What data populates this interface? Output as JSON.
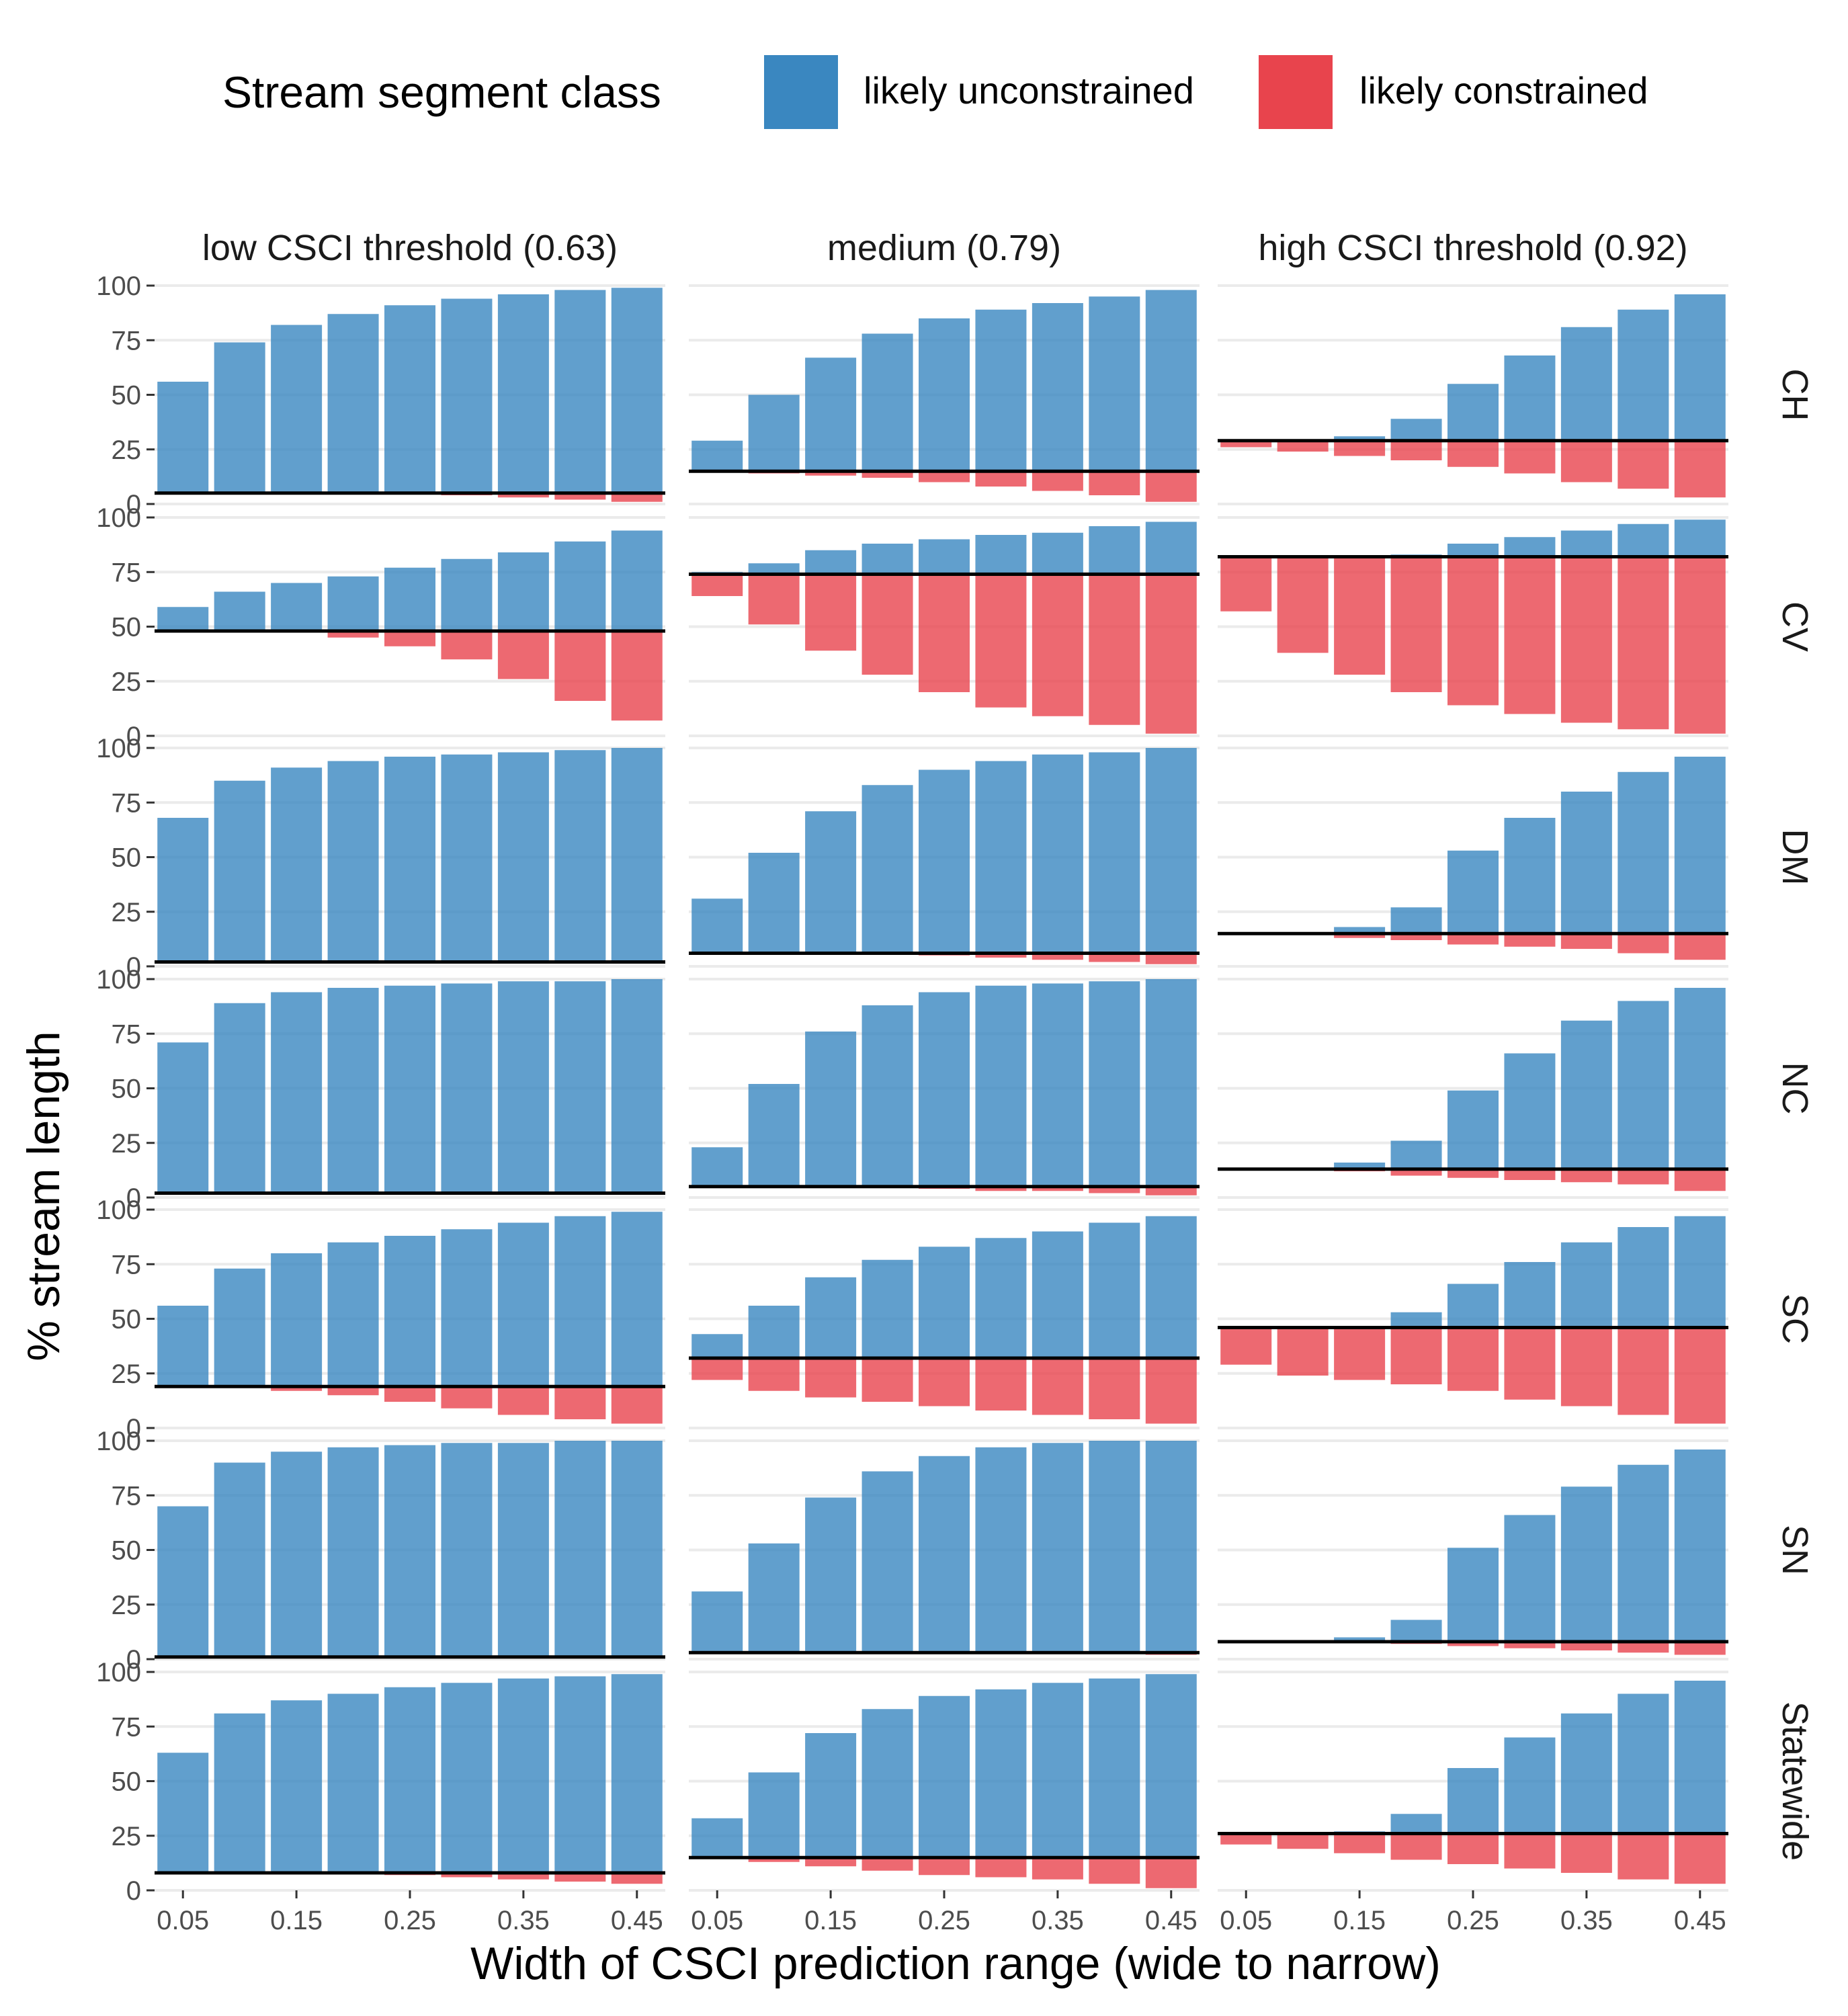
{
  "legend": {
    "title": "Stream segment class",
    "items": [
      {
        "label": "likely unconstrained",
        "color": "#3A87C0"
      },
      {
        "label": "likely constrained",
        "color": "#E8444D"
      }
    ]
  },
  "chart_data": {
    "type": "bar",
    "x_axis_label": "Width of CSCI prediction range (wide to narrow)",
    "y_axis_label": "% stream length",
    "x": [
      0.05,
      0.1,
      0.15,
      0.2,
      0.25,
      0.3,
      0.35,
      0.4,
      0.45
    ],
    "x_tick_labels": [
      "0.05",
      "0.15",
      "0.25",
      "0.35",
      "0.45"
    ],
    "x_tick_values": [
      0.05,
      0.15,
      0.25,
      0.35,
      0.45
    ],
    "ylim": [
      0,
      100
    ],
    "y_ticks": [
      0,
      25,
      50,
      75,
      100
    ],
    "columns": [
      "low CSCI threshold (0.63)",
      "medium (0.79)",
      "high CSCI threshold (0.92)"
    ],
    "rows": [
      "CH",
      "CV",
      "DM",
      "NC",
      "SC",
      "SN",
      "Statewide"
    ],
    "grid": true,
    "legend_position": "top",
    "panels": [
      [
        {
          "baseline": 5,
          "unconstrained": [
            56,
            74,
            82,
            87,
            91,
            94,
            96,
            98,
            99
          ],
          "constrained": [
            5,
            5,
            5,
            5,
            5,
            4,
            3,
            2,
            1
          ]
        },
        {
          "baseline": 48,
          "unconstrained": [
            59,
            66,
            70,
            73,
            77,
            81,
            84,
            89,
            94
          ],
          "constrained": [
            48,
            48,
            48,
            45,
            41,
            35,
            26,
            16,
            7
          ]
        },
        {
          "baseline": 2,
          "unconstrained": [
            68,
            85,
            91,
            94,
            96,
            97,
            98,
            99,
            100
          ],
          "constrained": [
            2,
            2,
            2,
            2,
            2,
            2,
            2,
            2,
            2
          ]
        },
        {
          "baseline": 2,
          "unconstrained": [
            71,
            89,
            94,
            96,
            97,
            98,
            99,
            99,
            100
          ],
          "constrained": [
            2,
            2,
            2,
            2,
            2,
            2,
            2,
            2,
            2
          ]
        },
        {
          "baseline": 19,
          "unconstrained": [
            56,
            73,
            80,
            85,
            88,
            91,
            94,
            97,
            99
          ],
          "constrained": [
            19,
            19,
            17,
            15,
            12,
            9,
            6,
            4,
            2
          ]
        },
        {
          "baseline": 1,
          "unconstrained": [
            70,
            90,
            95,
            97,
            98,
            99,
            99,
            100,
            100
          ],
          "constrained": [
            1,
            1,
            1,
            1,
            1,
            1,
            1,
            1,
            1
          ]
        },
        {
          "baseline": 8,
          "unconstrained": [
            63,
            81,
            87,
            90,
            93,
            95,
            97,
            98,
            99
          ],
          "constrained": [
            8,
            8,
            8,
            8,
            7,
            6,
            5,
            4,
            3
          ]
        }
      ],
      [
        {
          "baseline": 15,
          "unconstrained": [
            29,
            50,
            67,
            78,
            85,
            89,
            92,
            95,
            98
          ],
          "constrained": [
            15,
            14,
            13,
            12,
            10,
            8,
            6,
            4,
            1
          ]
        },
        {
          "baseline": 74,
          "unconstrained": [
            75,
            79,
            85,
            88,
            90,
            92,
            93,
            96,
            98
          ],
          "constrained": [
            64,
            51,
            39,
            28,
            20,
            13,
            9,
            5,
            1
          ]
        },
        {
          "baseline": 6,
          "unconstrained": [
            31,
            52,
            71,
            83,
            90,
            94,
            97,
            98,
            100
          ],
          "constrained": [
            6,
            6,
            6,
            6,
            5,
            4,
            3,
            2,
            1
          ]
        },
        {
          "baseline": 5,
          "unconstrained": [
            23,
            52,
            76,
            88,
            94,
            97,
            98,
            99,
            100
          ],
          "constrained": [
            5,
            5,
            5,
            5,
            4,
            3,
            3,
            2,
            1
          ]
        },
        {
          "baseline": 32,
          "unconstrained": [
            43,
            56,
            69,
            77,
            83,
            87,
            90,
            94,
            97
          ],
          "constrained": [
            22,
            17,
            14,
            12,
            10,
            8,
            6,
            4,
            2
          ]
        },
        {
          "baseline": 3,
          "unconstrained": [
            31,
            53,
            74,
            86,
            93,
            97,
            99,
            100,
            100
          ],
          "constrained": [
            3,
            3,
            3,
            3,
            3,
            3,
            3,
            3,
            2
          ]
        },
        {
          "baseline": 15,
          "unconstrained": [
            33,
            54,
            72,
            83,
            89,
            92,
            95,
            97,
            99
          ],
          "constrained": [
            15,
            13,
            11,
            9,
            7,
            6,
            5,
            3,
            1
          ]
        }
      ],
      [
        {
          "baseline": 29,
          "unconstrained": [
            null,
            null,
            31,
            39,
            55,
            68,
            81,
            89,
            96
          ],
          "constrained": [
            26,
            24,
            22,
            20,
            17,
            14,
            10,
            7,
            3
          ]
        },
        {
          "baseline": 82,
          "unconstrained": [
            null,
            null,
            null,
            83,
            88,
            91,
            94,
            97,
            99
          ],
          "constrained": [
            57,
            38,
            28,
            20,
            14,
            10,
            6,
            3,
            1
          ]
        },
        {
          "baseline": 15,
          "unconstrained": [
            null,
            null,
            18,
            27,
            53,
            68,
            80,
            89,
            96
          ],
          "constrained": [
            15,
            15,
            13,
            12,
            10,
            9,
            8,
            6,
            3
          ]
        },
        {
          "baseline": 13,
          "unconstrained": [
            null,
            null,
            16,
            26,
            49,
            66,
            81,
            90,
            96
          ],
          "constrained": [
            13,
            13,
            12,
            10,
            9,
            8,
            7,
            6,
            3
          ]
        },
        {
          "baseline": 46,
          "unconstrained": [
            null,
            null,
            null,
            53,
            66,
            76,
            85,
            92,
            97
          ],
          "constrained": [
            29,
            24,
            22,
            20,
            17,
            13,
            10,
            6,
            2
          ]
        },
        {
          "baseline": 8,
          "unconstrained": [
            null,
            null,
            10,
            18,
            51,
            66,
            79,
            89,
            96
          ],
          "constrained": [
            8,
            8,
            8,
            7,
            6,
            5,
            4,
            3,
            2
          ]
        },
        {
          "baseline": 26,
          "unconstrained": [
            null,
            null,
            27,
            35,
            56,
            70,
            81,
            90,
            96
          ],
          "constrained": [
            21,
            19,
            17,
            14,
            12,
            10,
            8,
            5,
            3
          ]
        }
      ]
    ]
  }
}
